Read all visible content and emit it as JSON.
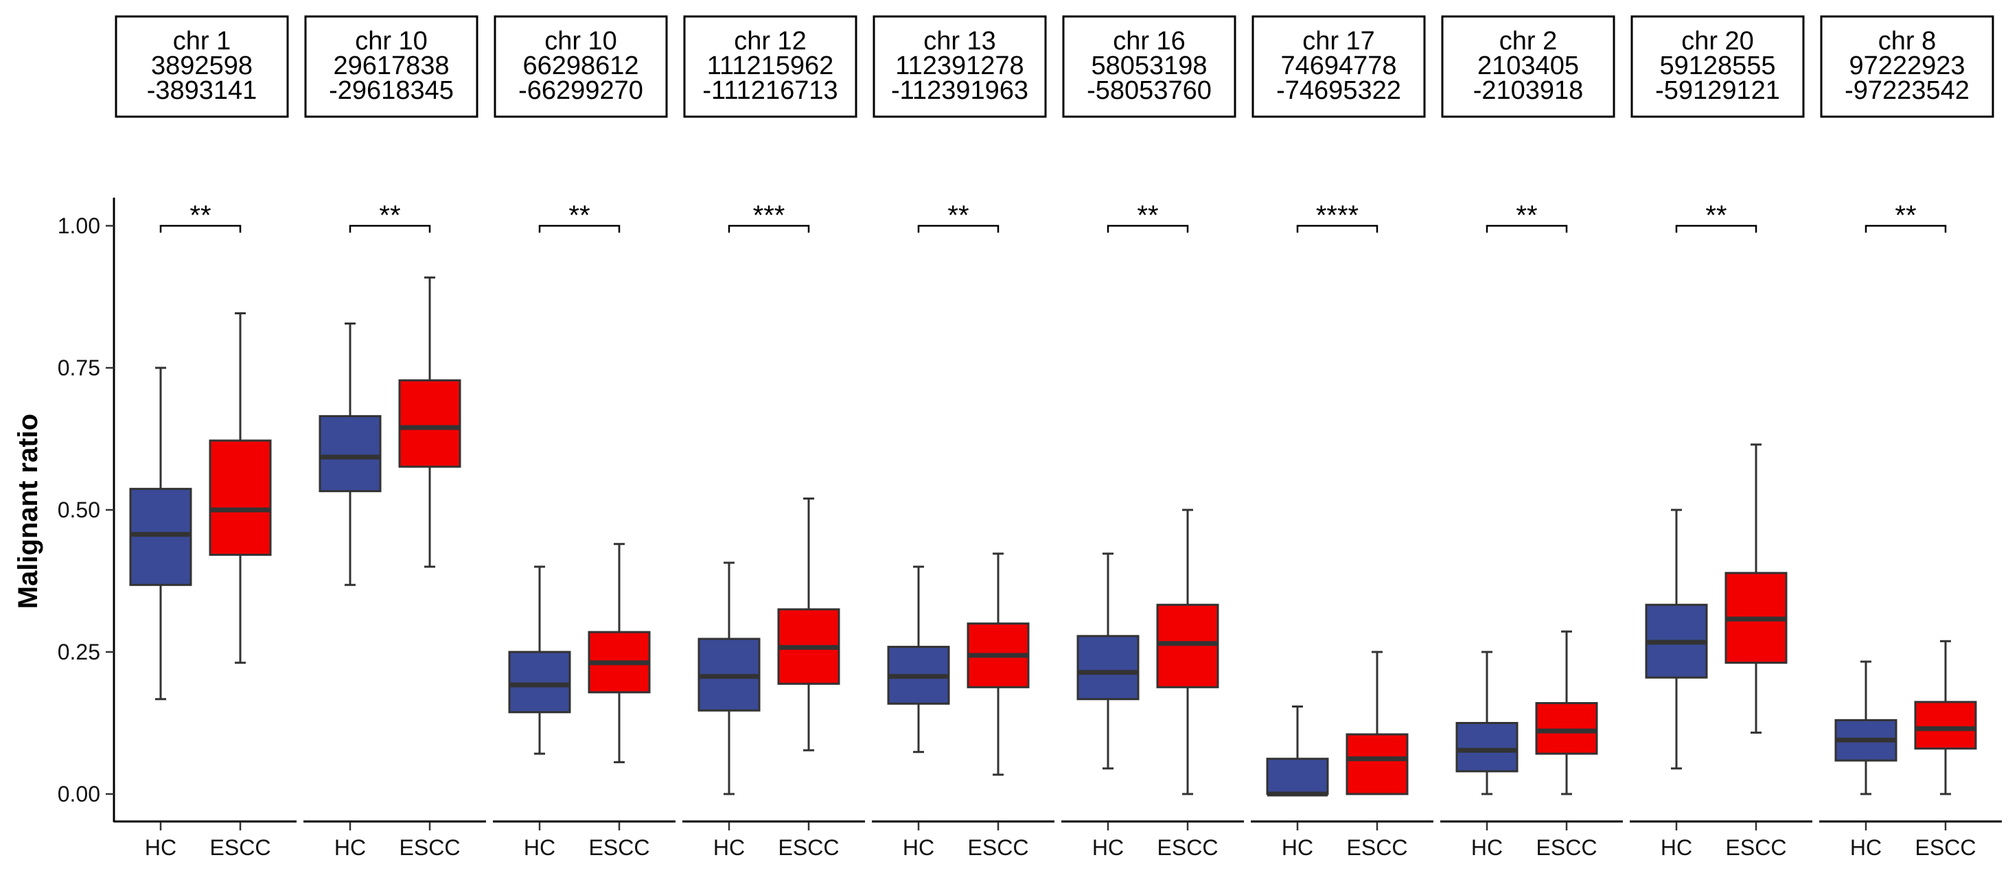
{
  "chart_data": {
    "type": "boxplot",
    "ylabel": "Malignant ratio",
    "ylim": [
      -0.05,
      1.05
    ],
    "yticks": [
      "0.00",
      "0.25",
      "0.50",
      "0.75",
      "1.00"
    ],
    "ytick_values": [
      0,
      0.25,
      0.5,
      0.75,
      1.0
    ],
    "groups": [
      "HC",
      "ESCC"
    ],
    "colors": {
      "HC": "#3a4a96",
      "ESCC": "#f20000",
      "outline": "#333333"
    },
    "panels": [
      {
        "strip": [
          "chr 1",
          "3892598",
          "-3893141"
        ],
        "significance": "**",
        "boxes": [
          {
            "group": "HC",
            "label": "HC",
            "min": 0.167,
            "q1": 0.368,
            "median": 0.457,
            "q3": 0.537,
            "max": 0.75
          },
          {
            "group": "ESCC",
            "label": "ESCC",
            "min": 0.231,
            "q1": 0.421,
            "median": 0.5,
            "q3": 0.622,
            "max": 0.846
          }
        ]
      },
      {
        "strip": [
          "chr 10",
          "29617838",
          "-29618345"
        ],
        "significance": "**",
        "boxes": [
          {
            "group": "HC",
            "label": "HC",
            "min": 0.368,
            "q1": 0.533,
            "median": 0.593,
            "q3": 0.665,
            "max": 0.828
          },
          {
            "group": "ESCC",
            "label": "ESCC",
            "min": 0.4,
            "q1": 0.576,
            "median": 0.645,
            "q3": 0.728,
            "max": 0.909
          }
        ]
      },
      {
        "strip": [
          "chr 10",
          "66298612",
          "-66299270"
        ],
        "significance": "**",
        "boxes": [
          {
            "group": "HC",
            "label": "HC",
            "min": 0.071,
            "q1": 0.144,
            "median": 0.192,
            "q3": 0.25,
            "max": 0.4
          },
          {
            "group": "ESCC",
            "label": "ESCC",
            "min": 0.056,
            "q1": 0.179,
            "median": 0.231,
            "q3": 0.285,
            "max": 0.44
          }
        ]
      },
      {
        "strip": [
          "chr 12",
          "111215962",
          "-111216713"
        ],
        "significance": "***",
        "boxes": [
          {
            "group": "HC",
            "label": "HC",
            "min": 0.0,
            "q1": 0.147,
            "median": 0.207,
            "q3": 0.273,
            "max": 0.407
          },
          {
            "group": "ESCC",
            "label": "ESCC",
            "min": 0.077,
            "q1": 0.194,
            "median": 0.258,
            "q3": 0.325,
            "max": 0.52
          }
        ]
      },
      {
        "strip": [
          "chr 13",
          "112391278",
          "-112391963"
        ],
        "significance": "**",
        "boxes": [
          {
            "group": "HC",
            "label": "HC",
            "min": 0.074,
            "q1": 0.159,
            "median": 0.207,
            "q3": 0.259,
            "max": 0.4
          },
          {
            "group": "ESCC",
            "label": "ESCC",
            "min": 0.034,
            "q1": 0.188,
            "median": 0.244,
            "q3": 0.3,
            "max": 0.423
          }
        ]
      },
      {
        "strip": [
          "chr 16",
          "58053198",
          "-58053760"
        ],
        "significance": "**",
        "boxes": [
          {
            "group": "HC",
            "label": "HC",
            "min": 0.045,
            "q1": 0.167,
            "median": 0.214,
            "q3": 0.278,
            "max": 0.423
          },
          {
            "group": "ESCC",
            "label": "ESCC",
            "min": 0.0,
            "q1": 0.188,
            "median": 0.265,
            "q3": 0.333,
            "max": 0.5
          }
        ]
      },
      {
        "strip": [
          "chr 17",
          "74694778",
          "-74695322"
        ],
        "significance": "****",
        "boxes": [
          {
            "group": "HC",
            "label": "HC",
            "min": 0.0,
            "q1": 0.0,
            "median": 0.0,
            "q3": 0.062,
            "max": 0.154
          },
          {
            "group": "ESCC",
            "label": "ESCC",
            "min": 0.0,
            "q1": 0.0,
            "median": 0.062,
            "q3": 0.105,
            "max": 0.25
          }
        ]
      },
      {
        "strip": [
          "chr 2",
          "2103405",
          "-2103918"
        ],
        "significance": "**",
        "boxes": [
          {
            "group": "HC",
            "label": "HC",
            "min": 0.0,
            "q1": 0.04,
            "median": 0.077,
            "q3": 0.125,
            "max": 0.25
          },
          {
            "group": "ESCC",
            "label": "ESCC",
            "min": 0.0,
            "q1": 0.071,
            "median": 0.111,
            "q3": 0.16,
            "max": 0.286
          }
        ]
      },
      {
        "strip": [
          "chr 20",
          "59128555",
          "-59129121"
        ],
        "significance": "**",
        "boxes": [
          {
            "group": "HC",
            "label": "HC",
            "min": 0.045,
            "q1": 0.205,
            "median": 0.267,
            "q3": 0.333,
            "max": 0.5
          },
          {
            "group": "ESCC",
            "label": "ESCC",
            "min": 0.108,
            "q1": 0.231,
            "median": 0.308,
            "q3": 0.389,
            "max": 0.615
          }
        ]
      },
      {
        "strip": [
          "chr 8",
          "97222923",
          "-97223542"
        ],
        "significance": "**",
        "boxes": [
          {
            "group": "HC",
            "label": "HC",
            "min": 0.0,
            "q1": 0.059,
            "median": 0.095,
            "q3": 0.13,
            "max": 0.233
          },
          {
            "group": "ESCC",
            "label": "ESCC",
            "min": 0.0,
            "q1": 0.08,
            "median": 0.115,
            "q3": 0.162,
            "max": 0.269
          }
        ]
      }
    ]
  }
}
